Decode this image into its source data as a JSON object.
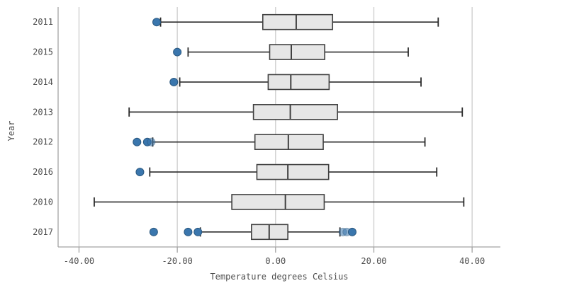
{
  "chart": {
    "xlabel": "Temperature degrees Celsius",
    "ylabel": "Year"
  },
  "colors": {
    "grid_line": "#cccccc",
    "axis_border": "#a3a3a3",
    "box_fill": "#e6e6e6",
    "box_border": "#404040",
    "whisker": "#2b2b2b",
    "point_fill": "#3a76ad",
    "point_border": "#2b587f",
    "label_text": "#4d4d4d"
  },
  "chart_data": {
    "type": "boxplot",
    "orientation": "horizontal",
    "title": "",
    "xlabel": "Temperature degrees Celsius",
    "ylabel": "Year",
    "x_range": [
      -44.25,
      45.75
    ],
    "grid": true,
    "x_ticks": [
      {
        "value": -40,
        "label": "-40.00"
      },
      {
        "value": -20,
        "label": "-20.00"
      },
      {
        "value": 0,
        "label": "0.00"
      },
      {
        "value": 20,
        "label": "20.00"
      },
      {
        "value": 40,
        "label": "40.00"
      }
    ],
    "categories": [
      "2011",
      "2015",
      "2014",
      "2013",
      "2012",
      "2016",
      "2010",
      "2017"
    ],
    "series": [
      {
        "year": "2011",
        "whisker_low": -23.4,
        "q1": -2.6,
        "median": 4.2,
        "q3": 11.6,
        "whisker_high": 33.1,
        "outliers": [
          {
            "v": -24.2,
            "faded": false
          }
        ]
      },
      {
        "year": "2015",
        "whisker_low": -17.8,
        "q1": -1.2,
        "median": 3.2,
        "q3": 10.0,
        "whisker_high": 27.0,
        "outliers": [
          {
            "v": -20.0,
            "faded": false
          }
        ]
      },
      {
        "year": "2014",
        "whisker_low": -19.5,
        "q1": -1.5,
        "median": 3.1,
        "q3": 10.9,
        "whisker_high": 29.6,
        "outliers": [
          {
            "v": -20.7,
            "faded": false
          }
        ]
      },
      {
        "year": "2013",
        "whisker_low": -29.8,
        "q1": -4.5,
        "median": 3.0,
        "q3": 12.6,
        "whisker_high": 38.0,
        "outliers": []
      },
      {
        "year": "2012",
        "whisker_low": -25.0,
        "q1": -4.2,
        "median": 2.6,
        "q3": 9.7,
        "whisker_high": 30.4,
        "outliers": [
          {
            "v": -28.2,
            "faded": false
          },
          {
            "v": -26.1,
            "faded": false
          },
          {
            "v": -25.3,
            "faded": true
          }
        ]
      },
      {
        "year": "2016",
        "whisker_low": -25.6,
        "q1": -3.8,
        "median": 2.5,
        "q3": 10.8,
        "whisker_high": 32.8,
        "outliers": [
          {
            "v": -27.6,
            "faded": false
          }
        ]
      },
      {
        "year": "2010",
        "whisker_low": -36.9,
        "q1": -8.9,
        "median": 2.0,
        "q3": 9.9,
        "whisker_high": 38.3,
        "outliers": []
      },
      {
        "year": "2017",
        "whisker_low": -15.3,
        "q1": -4.9,
        "median": -1.3,
        "q3": 2.5,
        "whisker_high": 13.1,
        "outliers": [
          {
            "v": -24.8,
            "faded": false
          },
          {
            "v": -17.8,
            "faded": false
          },
          {
            "v": -15.8,
            "faded": false
          },
          {
            "v": 13.7,
            "faded": true
          },
          {
            "v": 14.5,
            "faded": true
          },
          {
            "v": 15.6,
            "faded": false
          }
        ]
      }
    ]
  }
}
